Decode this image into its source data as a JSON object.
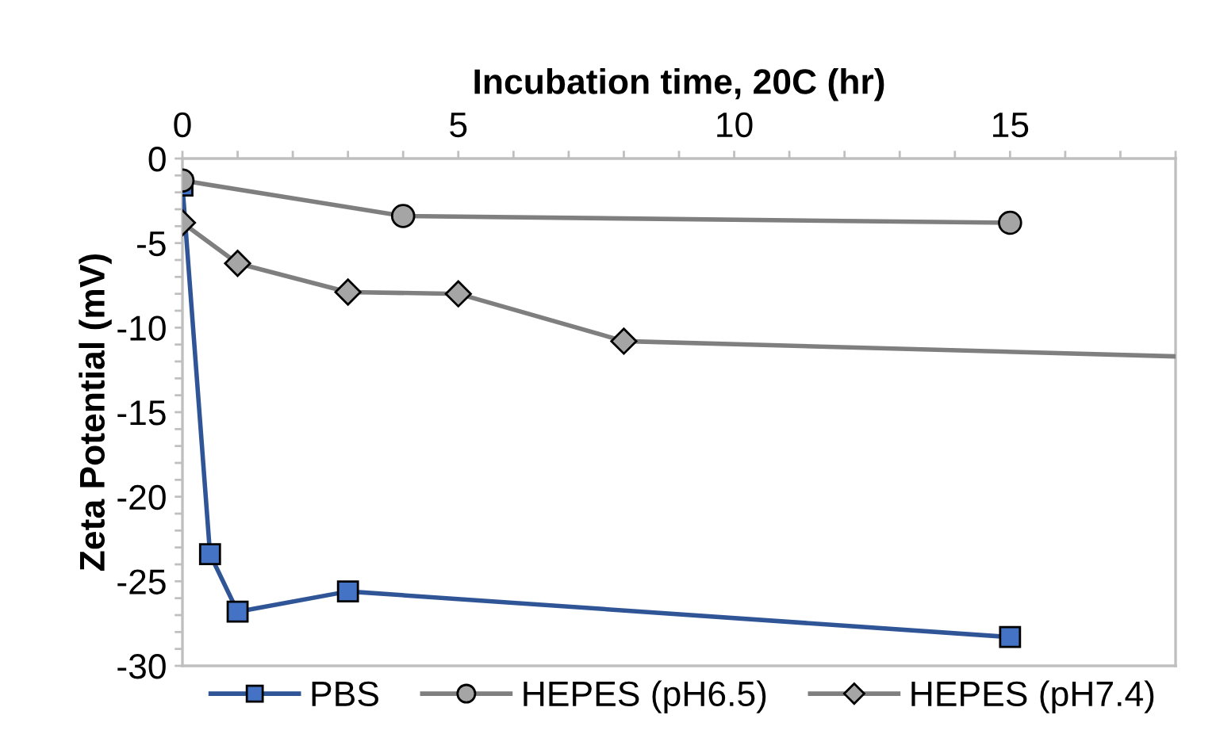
{
  "chart_data": {
    "type": "line",
    "xlabel": "Incubation time, 20C (hr)",
    "ylabel": "Zeta Potential (mV)",
    "xlim": [
      0,
      18
    ],
    "xticks": [
      0,
      {
        "value": 1,
        "label": null
      },
      {
        "value": 2,
        "label": null
      },
      {
        "value": 3,
        "label": null
      },
      {
        "value": 4,
        "label": null
      },
      5,
      {
        "value": 6,
        "label": null
      },
      {
        "value": 7,
        "label": null
      },
      {
        "value": 8,
        "label": null
      },
      {
        "value": 9,
        "label": null
      },
      10,
      {
        "value": 11,
        "label": null
      },
      {
        "value": 12,
        "label": null
      },
      {
        "value": 13,
        "label": null
      },
      {
        "value": 14,
        "label": null
      },
      15,
      {
        "value": 16,
        "label": null
      },
      {
        "value": 17,
        "label": null
      },
      {
        "value": 18,
        "label": null
      }
    ],
    "ylim": [
      -30,
      0
    ],
    "yticks": [
      -30,
      {
        "value": -29,
        "label": null
      },
      {
        "value": -28,
        "label": null
      },
      {
        "value": -27,
        "label": null
      },
      {
        "value": -26,
        "label": null
      },
      -25,
      {
        "value": -24,
        "label": null
      },
      {
        "value": -23,
        "label": null
      },
      {
        "value": -22,
        "label": null
      },
      {
        "value": -21,
        "label": null
      },
      -20,
      {
        "value": -19,
        "label": null
      },
      {
        "value": -18,
        "label": null
      },
      {
        "value": -17,
        "label": null
      },
      {
        "value": -16,
        "label": null
      },
      -15,
      {
        "value": -14,
        "label": null
      },
      {
        "value": -13,
        "label": null
      },
      {
        "value": -12,
        "label": null
      },
      {
        "value": -11,
        "label": null
      },
      -10,
      {
        "value": -9,
        "label": null
      },
      {
        "value": -8,
        "label": null
      },
      {
        "value": -7,
        "label": null
      },
      {
        "value": -6,
        "label": null
      },
      -5,
      {
        "value": -4,
        "label": null
      },
      {
        "value": -3,
        "label": null
      },
      {
        "value": -2,
        "label": null
      },
      {
        "value": -1,
        "label": null
      },
      0
    ],
    "grid": false,
    "legend": "bottom",
    "line_style": "solid",
    "series": [
      {
        "name": "PBS",
        "color": "#4472c4",
        "marker": "square",
        "x": [
          0,
          0.5,
          1,
          3,
          15
        ],
        "values": [
          -1.6,
          -23.4,
          -26.8,
          -25.6,
          -28.3
        ]
      },
      {
        "name": "HEPES (pH6.5)",
        "color": "#a5a5a5",
        "marker": "circle",
        "x": [
          0,
          4,
          15
        ],
        "values": [
          -1.3,
          -3.4,
          -3.8
        ]
      },
      {
        "name": "HEPES (pH7.4)",
        "color": "#a5a5a5",
        "marker": "diamond",
        "x": [
          0,
          1,
          3,
          5,
          8,
          18
        ],
        "values": [
          -3.8,
          -6.2,
          -7.9,
          -8.0,
          -10.8,
          -11.7
        ]
      }
    ]
  }
}
